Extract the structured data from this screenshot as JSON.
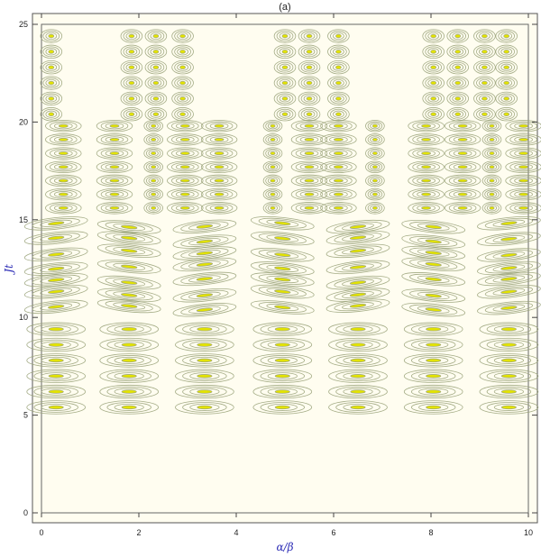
{
  "chart_data": {
    "type": "heatmap",
    "subtype": "contour",
    "title": "(a)",
    "xlabel": "α/β",
    "ylabel": "Jt",
    "xlim": [
      0,
      10
    ],
    "ylim": [
      0,
      25
    ],
    "x_ticks": [
      0,
      2,
      4,
      6,
      8,
      10
    ],
    "y_ticks": [
      0,
      5,
      10,
      15,
      20,
      25
    ],
    "grid": false,
    "colors": {
      "background": "#fffdf0",
      "contour_line": "#9aa37a",
      "peak": "#e4e400",
      "frame": "#555555",
      "axis_title": "#2b2bb5"
    },
    "regions": [
      {
        "t_range": [
          5,
          10
        ],
        "shape": "flat",
        "row_times": [
          5.4,
          6.2,
          7.0,
          7.8,
          8.6,
          9.4
        ],
        "column_centers": [
          0.3,
          1.8,
          3.35,
          4.95,
          6.5,
          8.05,
          9.6
        ],
        "half_width": 0.6
      },
      {
        "t_range": [
          10,
          15
        ],
        "shape": "curved",
        "row_times": [
          10.5,
          11.2,
          11.9,
          12.6,
          13.3,
          14.0,
          14.7
        ],
        "column_centers": [
          0.3,
          1.8,
          3.35,
          4.95,
          6.5,
          8.05,
          9.6
        ],
        "half_width": 0.65
      },
      {
        "t_range": [
          15,
          20
        ],
        "shape": "mixed",
        "row_times": [
          15.6,
          16.3,
          17.0,
          17.7,
          18.4,
          19.1,
          19.8
        ],
        "column_centers": [
          0.45,
          1.5,
          2.3,
          2.95,
          3.65,
          4.75,
          5.5,
          6.1,
          6.85,
          7.9,
          8.65,
          9.25,
          9.9
        ],
        "half_width": 0.35
      },
      {
        "t_range": [
          20,
          25
        ],
        "shape": "small",
        "row_times": [
          20.4,
          21.2,
          22.0,
          22.8,
          23.6,
          24.4
        ],
        "column_centers": [
          0.2,
          1.85,
          2.35,
          2.9,
          5.0,
          5.5,
          6.1,
          8.05,
          8.55,
          9.1,
          9.55
        ],
        "half_width": 0.22
      }
    ]
  }
}
